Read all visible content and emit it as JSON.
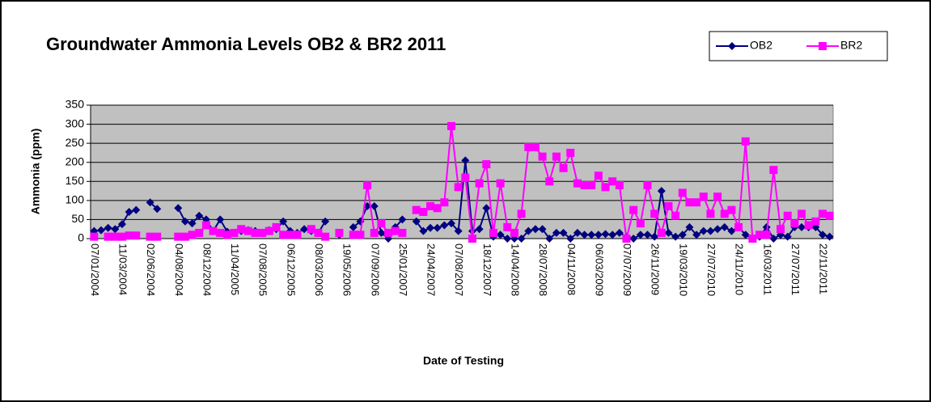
{
  "chart_data": {
    "type": "line",
    "title": "Groundwater Ammonia Levels OB2 & BR2 2011",
    "x_label": "Date of Testing",
    "y_label": "Ammonia (ppm)",
    "categories": [
      "07/01/2004",
      null,
      null,
      null,
      "11/03/2004",
      null,
      null,
      null,
      "02/06/2004",
      null,
      null,
      null,
      "04/08/2004",
      null,
      null,
      null,
      "08/12/2004",
      null,
      null,
      null,
      "11/04/2005",
      null,
      null,
      null,
      "07/08/2005",
      null,
      null,
      null,
      "06/12/2005",
      null,
      null,
      null,
      "08/03/2006",
      null,
      null,
      null,
      "19/05/2006",
      null,
      null,
      null,
      "07/09/2006",
      null,
      null,
      null,
      "25/01/2007",
      null,
      null,
      null,
      "24/04/2007",
      null,
      null,
      null,
      "07/08/2007",
      null,
      null,
      null,
      "18/12/2007",
      null,
      null,
      null,
      "14/04/2008",
      null,
      null,
      null,
      "28/07/2008",
      null,
      null,
      null,
      "04/11/2008",
      null,
      null,
      null,
      "06/03/2009",
      null,
      null,
      null,
      "07/07/2009",
      null,
      null,
      null,
      "26/11/2009",
      null,
      null,
      null,
      "19/03/2010",
      null,
      null,
      null,
      "27/07/2010",
      null,
      null,
      null,
      "24/11/2010",
      null,
      null,
      null,
      "16/03/2011",
      null,
      null,
      null,
      "27/07/2011",
      null,
      null,
      null,
      "22/11/2011",
      null
    ],
    "series": [
      {
        "name": "OB2",
        "color": "#000080",
        "marker": "diamond",
        "values": [
          20,
          22,
          28,
          25,
          38,
          70,
          75,
          null,
          95,
          78,
          null,
          null,
          80,
          45,
          40,
          60,
          50,
          20,
          50,
          18,
          15,
          20,
          22,
          20,
          15,
          22,
          25,
          45,
          20,
          15,
          25,
          20,
          15,
          45,
          null,
          10,
          null,
          30,
          45,
          85,
          85,
          15,
          0,
          30,
          50,
          null,
          45,
          20,
          28,
          28,
          35,
          40,
          20,
          205,
          20,
          25,
          80,
          5,
          10,
          0,
          0,
          0,
          20,
          25,
          25,
          0,
          15,
          15,
          0,
          15,
          10,
          10,
          10,
          12,
          10,
          15,
          5,
          0,
          10,
          10,
          5,
          125,
          15,
          5,
          10,
          30,
          10,
          20,
          20,
          25,
          30,
          20,
          30,
          10,
          0,
          5,
          30,
          0,
          10,
          5,
          30,
          30,
          30,
          30,
          10,
          5
        ]
      },
      {
        "name": "BR2",
        "color": "#ff00ff",
        "marker": "square",
        "values": [
          5,
          null,
          5,
          5,
          5,
          8,
          8,
          null,
          5,
          5,
          null,
          null,
          5,
          5,
          10,
          15,
          35,
          20,
          15,
          10,
          15,
          25,
          20,
          15,
          15,
          20,
          30,
          10,
          10,
          10,
          null,
          25,
          15,
          5,
          null,
          15,
          null,
          10,
          10,
          140,
          15,
          40,
          15,
          20,
          15,
          null,
          75,
          70,
          85,
          80,
          95,
          295,
          135,
          160,
          0,
          145,
          195,
          15,
          145,
          30,
          15,
          65,
          240,
          240,
          215,
          150,
          215,
          185,
          225,
          145,
          140,
          140,
          165,
          135,
          150,
          140,
          0,
          75,
          40,
          140,
          65,
          15,
          85,
          60,
          120,
          95,
          95,
          110,
          65,
          110,
          65,
          75,
          30,
          255,
          0,
          10,
          10,
          180,
          25,
          60,
          40,
          65,
          35,
          45,
          65,
          60
        ]
      }
    ],
    "ylim": [
      0,
      350
    ],
    "yticks": [
      0,
      50,
      100,
      150,
      200,
      250,
      300,
      350
    ],
    "grid": true,
    "plot_background": "#c0c0c0",
    "legend": "top-right"
  }
}
